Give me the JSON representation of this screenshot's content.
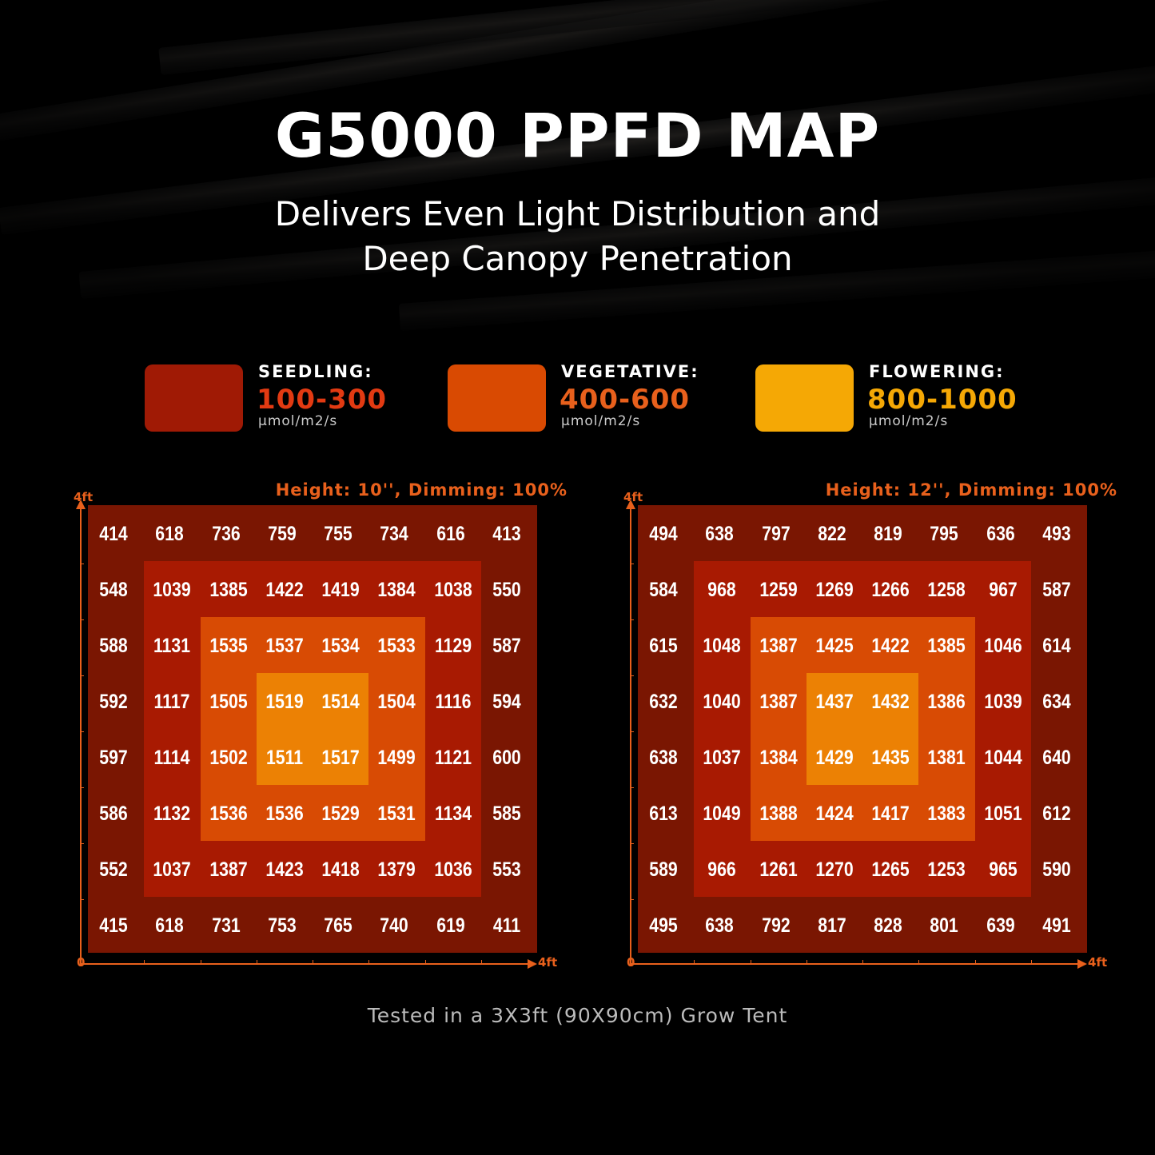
{
  "header": {
    "title": "G5000 PPFD MAP",
    "subtitle_line1": "Delivers Even Light Distribution and",
    "subtitle_line2": "Deep Canopy Penetration"
  },
  "legend": [
    {
      "label": "SEEDLING:",
      "range": "100-300",
      "unit": "μmol/m2/s",
      "color": "#a01a05",
      "text_color": "#e23a12"
    },
    {
      "label": "VEGETATIVE:",
      "range": "400-600",
      "unit": "μmol/m2/s",
      "color": "#d94a02",
      "text_color": "#e8601c"
    },
    {
      "label": "FLOWERING:",
      "range": "800-1000",
      "unit": "μmol/m2/s",
      "color": "#f5a805",
      "text_color": "#f5a805"
    }
  ],
  "chart_data": [
    {
      "type": "heatmap",
      "title": "Height: 10'', Dimming: 100%",
      "x_axis": {
        "min_label": "0",
        "max_label": "4ft"
      },
      "y_axis": {
        "max_label": "4ft"
      },
      "values": [
        [
          414,
          618,
          736,
          759,
          755,
          734,
          616,
          413
        ],
        [
          548,
          1039,
          1385,
          1422,
          1419,
          1384,
          1038,
          550
        ],
        [
          588,
          1131,
          1535,
          1537,
          1534,
          1533,
          1129,
          587
        ],
        [
          592,
          1117,
          1505,
          1519,
          1514,
          1504,
          1116,
          594
        ],
        [
          597,
          1114,
          1502,
          1511,
          1517,
          1499,
          1121,
          600
        ],
        [
          586,
          1132,
          1536,
          1536,
          1529,
          1531,
          1134,
          585
        ],
        [
          552,
          1037,
          1387,
          1423,
          1418,
          1379,
          1036,
          553
        ],
        [
          415,
          618,
          731,
          753,
          765,
          740,
          619,
          411
        ]
      ]
    },
    {
      "type": "heatmap",
      "title": "Height: 12'', Dimming: 100%",
      "x_axis": {
        "min_label": "0",
        "max_label": "4ft"
      },
      "y_axis": {
        "max_label": "4ft"
      },
      "values": [
        [
          494,
          638,
          797,
          822,
          819,
          795,
          636,
          493
        ],
        [
          584,
          968,
          1259,
          1269,
          1266,
          1258,
          967,
          587
        ],
        [
          615,
          1048,
          1387,
          1425,
          1422,
          1385,
          1046,
          614
        ],
        [
          632,
          1040,
          1387,
          1437,
          1432,
          1386,
          1039,
          634
        ],
        [
          638,
          1037,
          1384,
          1429,
          1435,
          1381,
          1044,
          640
        ],
        [
          613,
          1049,
          1388,
          1424,
          1417,
          1383,
          1051,
          612
        ],
        [
          589,
          966,
          1261,
          1270,
          1265,
          1253,
          965,
          590
        ],
        [
          495,
          638,
          792,
          817,
          828,
          801,
          639,
          491
        ]
      ]
    }
  ],
  "ring_colors": [
    "#7a1602",
    "#a81a02",
    "#d84b04",
    "#ec8104"
  ],
  "axis_color": "#e8601c",
  "footer": "Tested in a 3X3ft (90X90cm) Grow Tent"
}
